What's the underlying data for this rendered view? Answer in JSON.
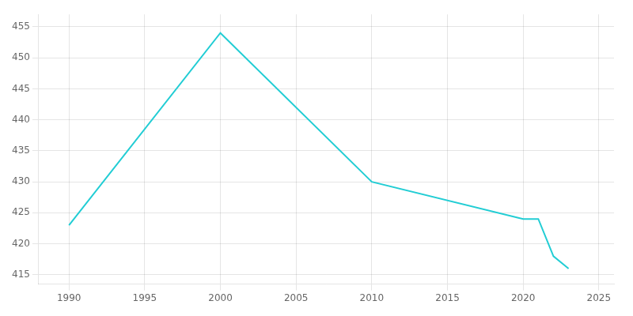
{
  "chart_data": {
    "type": "line",
    "x": [
      1990,
      2000,
      2010,
      2020,
      2021,
      2022,
      2023
    ],
    "values": [
      423,
      454,
      430,
      424,
      424,
      418,
      416
    ],
    "color": "#22CDD4",
    "xlim": [
      1988,
      2026
    ],
    "ylim": [
      413.5,
      457
    ],
    "xticks": [
      1990,
      1995,
      2000,
      2005,
      2010,
      2015,
      2020,
      2025
    ],
    "yticks": [
      415,
      420,
      425,
      430,
      435,
      440,
      445,
      450,
      455
    ],
    "grid": true
  }
}
